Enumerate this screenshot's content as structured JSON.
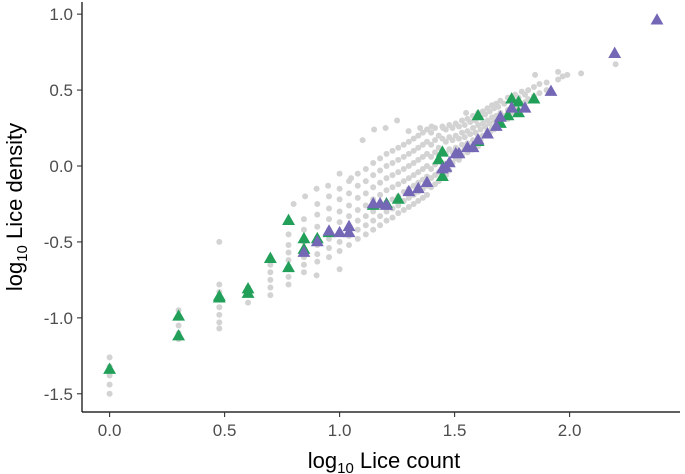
{
  "chart_data": {
    "type": "scatter",
    "xlabel": {
      "prefix": "log",
      "sub": "10",
      "suffix": " Lice count"
    },
    "ylabel": {
      "prefix": "log",
      "sub": "10",
      "suffix": " Lice density"
    },
    "xlim": [
      -0.12,
      2.48
    ],
    "ylim": [
      -1.62,
      1.08
    ],
    "x_ticks": [
      0.0,
      0.5,
      1.0,
      1.5,
      2.0
    ],
    "x_tick_labels": [
      "0.0",
      "0.5",
      "1.0",
      "1.5",
      "2.0"
    ],
    "y_ticks": [
      -1.5,
      -1.0,
      -0.5,
      0.0,
      0.5,
      1.0
    ],
    "y_tick_labels": [
      "-1.5",
      "-1.0",
      "-0.5",
      "0.0",
      "0.5",
      "1.0"
    ],
    "grid": false,
    "colors": {
      "background": "#d3d3d3",
      "green": "#22a05a",
      "purple": "#7467b5",
      "axis": "#000000"
    },
    "background_points": [
      [
        0.0,
        -1.26
      ],
      [
        0.0,
        -1.32
      ],
      [
        0.0,
        -1.38
      ],
      [
        0.0,
        -1.44
      ],
      [
        0.0,
        -1.5
      ],
      [
        0.3,
        -0.95
      ],
      [
        0.3,
        -1.0
      ],
      [
        0.3,
        -1.05
      ],
      [
        0.3,
        -1.1
      ],
      [
        0.3,
        -1.14
      ],
      [
        0.477,
        -0.5
      ],
      [
        0.477,
        -0.78
      ],
      [
        0.477,
        -0.83
      ],
      [
        0.477,
        -0.88
      ],
      [
        0.477,
        -0.93
      ],
      [
        0.477,
        -0.98
      ],
      [
        0.477,
        -1.03
      ],
      [
        0.477,
        -1.07
      ],
      [
        0.602,
        -0.8
      ],
      [
        0.602,
        -0.85
      ],
      [
        0.602,
        -0.9
      ],
      [
        0.699,
        -0.6
      ],
      [
        0.699,
        -0.65
      ],
      [
        0.699,
        -0.7
      ],
      [
        0.699,
        -0.75
      ],
      [
        0.699,
        -0.8
      ],
      [
        0.699,
        -0.85
      ],
      [
        0.778,
        -0.45
      ],
      [
        0.778,
        -0.52
      ],
      [
        0.778,
        -0.57
      ],
      [
        0.778,
        -0.62
      ],
      [
        0.778,
        -0.68
      ],
      [
        0.778,
        -0.73
      ],
      [
        0.778,
        -0.78
      ],
      [
        0.845,
        -0.35
      ],
      [
        0.845,
        -0.42
      ],
      [
        0.845,
        -0.5
      ],
      [
        0.845,
        -0.55
      ],
      [
        0.845,
        -0.6
      ],
      [
        0.845,
        -0.65
      ],
      [
        0.845,
        -0.7
      ],
      [
        0.903,
        -0.25
      ],
      [
        0.903,
        -0.32
      ],
      [
        0.903,
        -0.4
      ],
      [
        0.903,
        -0.47
      ],
      [
        0.903,
        -0.52
      ],
      [
        0.903,
        -0.58
      ],
      [
        0.903,
        -0.63
      ],
      [
        0.954,
        -0.2
      ],
      [
        0.954,
        -0.28
      ],
      [
        0.954,
        -0.35
      ],
      [
        0.954,
        -0.42
      ],
      [
        0.954,
        -0.48
      ],
      [
        0.954,
        -0.54
      ],
      [
        0.954,
        -0.6
      ],
      [
        1.0,
        -0.15
      ],
      [
        1.0,
        -0.22
      ],
      [
        1.0,
        -0.3
      ],
      [
        1.0,
        -0.37
      ],
      [
        1.0,
        -0.44
      ],
      [
        1.0,
        -0.5
      ],
      [
        1.0,
        -0.56
      ],
      [
        1.041,
        -0.1
      ],
      [
        1.041,
        -0.18
      ],
      [
        1.041,
        -0.26
      ],
      [
        1.041,
        -0.33
      ],
      [
        1.041,
        -0.4
      ],
      [
        1.041,
        -0.46
      ],
      [
        1.041,
        -0.52
      ],
      [
        1.079,
        -0.05
      ],
      [
        1.079,
        -0.13
      ],
      [
        1.079,
        -0.21
      ],
      [
        1.079,
        -0.29
      ],
      [
        1.079,
        -0.36
      ],
      [
        1.079,
        -0.42
      ],
      [
        1.079,
        -0.48
      ],
      [
        1.114,
        -0.02
      ],
      [
        1.114,
        -0.1
      ],
      [
        1.114,
        -0.18
      ],
      [
        1.114,
        -0.26
      ],
      [
        1.114,
        -0.33
      ],
      [
        1.114,
        -0.39
      ],
      [
        1.114,
        -0.45
      ],
      [
        1.146,
        0.02
      ],
      [
        1.146,
        -0.06
      ],
      [
        1.146,
        -0.14
      ],
      [
        1.146,
        -0.22
      ],
      [
        1.146,
        -0.3
      ],
      [
        1.146,
        -0.36
      ],
      [
        1.146,
        -0.42
      ],
      [
        1.176,
        0.05
      ],
      [
        1.176,
        -0.03
      ],
      [
        1.176,
        -0.11
      ],
      [
        1.176,
        -0.19
      ],
      [
        1.176,
        -0.27
      ],
      [
        1.176,
        -0.33
      ],
      [
        1.176,
        -0.39
      ],
      [
        1.204,
        0.08
      ],
      [
        1.204,
        0.0
      ],
      [
        1.204,
        -0.08
      ],
      [
        1.204,
        -0.16
      ],
      [
        1.204,
        -0.24
      ],
      [
        1.204,
        -0.3
      ],
      [
        1.204,
        -0.36
      ],
      [
        1.23,
        0.1
      ],
      [
        1.23,
        0.02
      ],
      [
        1.23,
        -0.06
      ],
      [
        1.23,
        -0.14
      ],
      [
        1.23,
        -0.22
      ],
      [
        1.23,
        -0.28
      ],
      [
        1.23,
        -0.34
      ],
      [
        1.255,
        0.12
      ],
      [
        1.255,
        0.04
      ],
      [
        1.255,
        -0.04
      ],
      [
        1.255,
        -0.12
      ],
      [
        1.255,
        -0.2
      ],
      [
        1.255,
        -0.26
      ],
      [
        1.255,
        -0.31
      ],
      [
        1.279,
        0.14
      ],
      [
        1.279,
        0.06
      ],
      [
        1.279,
        -0.02
      ],
      [
        1.279,
        -0.1
      ],
      [
        1.279,
        -0.17
      ],
      [
        1.279,
        -0.23
      ],
      [
        1.279,
        -0.29
      ],
      [
        1.301,
        0.16
      ],
      [
        1.301,
        0.08
      ],
      [
        1.301,
        0.0
      ],
      [
        1.301,
        -0.08
      ],
      [
        1.301,
        -0.15
      ],
      [
        1.301,
        -0.21
      ],
      [
        1.301,
        -0.27
      ],
      [
        1.322,
        0.18
      ],
      [
        1.322,
        0.1
      ],
      [
        1.322,
        0.02
      ],
      [
        1.322,
        -0.06
      ],
      [
        1.322,
        -0.13
      ],
      [
        1.322,
        -0.19
      ],
      [
        1.322,
        -0.25
      ],
      [
        1.342,
        0.2
      ],
      [
        1.342,
        0.12
      ],
      [
        1.342,
        0.04
      ],
      [
        1.342,
        -0.04
      ],
      [
        1.342,
        -0.11
      ],
      [
        1.342,
        -0.17
      ],
      [
        1.342,
        -0.23
      ],
      [
        1.362,
        0.22
      ],
      [
        1.362,
        0.14
      ],
      [
        1.362,
        0.06
      ],
      [
        1.362,
        -0.02
      ],
      [
        1.362,
        -0.09
      ],
      [
        1.362,
        -0.15
      ],
      [
        1.362,
        -0.21
      ],
      [
        1.38,
        0.24
      ],
      [
        1.38,
        0.16
      ],
      [
        1.38,
        0.08
      ],
      [
        1.38,
        0.0
      ],
      [
        1.38,
        -0.07
      ],
      [
        1.38,
        -0.13
      ],
      [
        1.38,
        -0.19
      ],
      [
        1.398,
        0.22
      ],
      [
        1.398,
        0.14
      ],
      [
        1.398,
        0.06
      ],
      [
        1.398,
        -0.02
      ],
      [
        1.398,
        -0.08
      ],
      [
        1.398,
        -0.14
      ],
      [
        1.415,
        0.25
      ],
      [
        1.415,
        0.17
      ],
      [
        1.415,
        0.09
      ],
      [
        1.415,
        0.01
      ],
      [
        1.415,
        -0.06
      ],
      [
        1.415,
        -0.12
      ],
      [
        1.431,
        0.2
      ],
      [
        1.431,
        0.12
      ],
      [
        1.431,
        0.04
      ],
      [
        1.431,
        -0.04
      ],
      [
        1.431,
        -0.1
      ],
      [
        1.447,
        0.26
      ],
      [
        1.447,
        0.18
      ],
      [
        1.447,
        0.1
      ],
      [
        1.447,
        0.02
      ],
      [
        1.447,
        -0.05
      ],
      [
        1.462,
        0.24
      ],
      [
        1.462,
        0.16
      ],
      [
        1.462,
        0.08
      ],
      [
        1.462,
        0.0
      ],
      [
        1.462,
        -0.06
      ],
      [
        1.477,
        0.27
      ],
      [
        1.477,
        0.19
      ],
      [
        1.477,
        0.11
      ],
      [
        1.477,
        0.03
      ],
      [
        1.477,
        -0.03
      ],
      [
        1.491,
        0.25
      ],
      [
        1.491,
        0.17
      ],
      [
        1.491,
        0.09
      ],
      [
        1.491,
        0.02
      ],
      [
        1.505,
        0.28
      ],
      [
        1.505,
        0.2
      ],
      [
        1.505,
        0.12
      ],
      [
        1.505,
        0.05
      ],
      [
        1.519,
        0.26
      ],
      [
        1.519,
        0.18
      ],
      [
        1.519,
        0.1
      ],
      [
        1.519,
        0.04
      ],
      [
        1.532,
        0.3
      ],
      [
        1.532,
        0.22
      ],
      [
        1.532,
        0.14
      ],
      [
        1.532,
        0.07
      ],
      [
        1.544,
        0.27
      ],
      [
        1.544,
        0.19
      ],
      [
        1.544,
        0.11
      ],
      [
        1.556,
        0.31
      ],
      [
        1.556,
        0.23
      ],
      [
        1.556,
        0.15
      ],
      [
        1.556,
        0.09
      ],
      [
        1.568,
        0.29
      ],
      [
        1.568,
        0.21
      ],
      [
        1.568,
        0.13
      ],
      [
        1.58,
        0.33
      ],
      [
        1.58,
        0.25
      ],
      [
        1.58,
        0.17
      ],
      [
        1.58,
        0.11
      ],
      [
        1.591,
        0.3
      ],
      [
        1.591,
        0.22
      ],
      [
        1.591,
        0.15
      ],
      [
        1.602,
        0.35
      ],
      [
        1.602,
        0.27
      ],
      [
        1.602,
        0.19
      ],
      [
        1.602,
        0.13
      ],
      [
        1.613,
        0.32
      ],
      [
        1.613,
        0.24
      ],
      [
        1.613,
        0.17
      ],
      [
        1.623,
        0.36
      ],
      [
        1.623,
        0.28
      ],
      [
        1.623,
        0.2
      ],
      [
        1.633,
        0.34
      ],
      [
        1.633,
        0.26
      ],
      [
        1.633,
        0.2
      ],
      [
        1.643,
        0.38
      ],
      [
        1.643,
        0.3
      ],
      [
        1.643,
        0.23
      ],
      [
        1.653,
        0.36
      ],
      [
        1.653,
        0.28
      ],
      [
        1.653,
        0.22
      ],
      [
        1.663,
        0.4
      ],
      [
        1.663,
        0.32
      ],
      [
        1.663,
        0.25
      ],
      [
        1.672,
        0.38
      ],
      [
        1.672,
        0.3
      ],
      [
        1.672,
        0.24
      ],
      [
        1.681,
        0.41
      ],
      [
        1.681,
        0.33
      ],
      [
        1.681,
        0.27
      ],
      [
        1.69,
        0.39
      ],
      [
        1.69,
        0.31
      ],
      [
        1.699,
        0.43
      ],
      [
        1.699,
        0.35
      ],
      [
        1.699,
        0.29
      ],
      [
        1.716,
        0.41
      ],
      [
        1.716,
        0.33
      ],
      [
        1.732,
        0.45
      ],
      [
        1.732,
        0.37
      ],
      [
        1.732,
        0.31
      ],
      [
        1.748,
        0.43
      ],
      [
        1.748,
        0.35
      ],
      [
        1.763,
        0.47
      ],
      [
        1.763,
        0.39
      ],
      [
        1.778,
        0.45
      ],
      [
        1.778,
        0.37
      ],
      [
        1.792,
        0.49
      ],
      [
        1.792,
        0.41
      ],
      [
        1.806,
        0.47
      ],
      [
        1.806,
        0.42
      ],
      [
        1.82,
        0.5
      ],
      [
        1.82,
        0.44
      ],
      [
        1.845,
        0.52
      ],
      [
        1.845,
        0.46
      ],
      [
        1.869,
        0.54
      ],
      [
        1.869,
        0.48
      ],
      [
        1.9,
        0.55
      ],
      [
        1.9,
        0.5
      ],
      [
        1.95,
        0.57
      ],
      [
        1.97,
        0.59
      ],
      [
        1.99,
        0.6
      ],
      [
        2.05,
        0.61
      ],
      [
        2.2,
        0.67
      ],
      [
        1.85,
        0.6
      ],
      [
        1.95,
        0.62
      ],
      [
        1.1,
        0.17
      ],
      [
        1.15,
        0.24
      ],
      [
        1.2,
        0.25
      ],
      [
        1.25,
        0.3
      ],
      [
        1.3,
        0.23
      ],
      [
        1.35,
        0.25
      ],
      [
        1.4,
        0.26
      ],
      [
        1.45,
        0.25
      ],
      [
        1.55,
        0.35
      ],
      [
        0.85,
        -0.2
      ],
      [
        0.95,
        -0.13
      ],
      [
        1.05,
        -0.08
      ],
      [
        0.8,
        -0.25
      ],
      [
        0.9,
        -0.15
      ],
      [
        1.0,
        -0.05
      ],
      [
        0.9,
        -0.72
      ],
      [
        1.0,
        -0.68
      ]
    ],
    "series": [
      {
        "color": "#22a05a",
        "marker": "triangle",
        "points": [
          [
            0.0,
            -1.34
          ],
          [
            0.3,
            -0.99
          ],
          [
            0.3,
            -1.12
          ],
          [
            0.477,
            -0.86
          ],
          [
            0.477,
            -0.87
          ],
          [
            0.602,
            -0.81
          ],
          [
            0.602,
            -0.84
          ],
          [
            0.699,
            -0.61
          ],
          [
            0.778,
            -0.36
          ],
          [
            0.778,
            -0.67
          ],
          [
            0.845,
            -0.48
          ],
          [
            0.845,
            -0.55
          ],
          [
            0.903,
            -0.48
          ],
          [
            0.954,
            -0.44
          ],
          [
            1.146,
            -0.26
          ],
          [
            1.204,
            -0.25
          ],
          [
            1.255,
            -0.22
          ],
          [
            1.431,
            0.04
          ],
          [
            1.447,
            0.09
          ],
          [
            1.447,
            -0.07
          ],
          [
            1.602,
            0.33
          ],
          [
            1.602,
            0.16
          ],
          [
            1.699,
            0.28
          ],
          [
            1.732,
            0.33
          ],
          [
            1.748,
            0.44
          ],
          [
            1.778,
            0.42
          ],
          [
            1.778,
            0.35
          ],
          [
            1.845,
            0.44
          ]
        ]
      },
      {
        "color": "#7467b5",
        "marker": "triangle",
        "points": [
          [
            0.845,
            -0.57
          ],
          [
            0.903,
            -0.5
          ],
          [
            0.954,
            -0.43
          ],
          [
            1.0,
            -0.44
          ],
          [
            1.041,
            -0.44
          ],
          [
            1.041,
            -0.4
          ],
          [
            1.146,
            -0.25
          ],
          [
            1.176,
            -0.25
          ],
          [
            1.204,
            -0.26
          ],
          [
            1.301,
            -0.17
          ],
          [
            1.342,
            -0.15
          ],
          [
            1.38,
            -0.11
          ],
          [
            1.447,
            -0.02
          ],
          [
            1.462,
            -0.01
          ],
          [
            1.477,
            0.02
          ],
          [
            1.505,
            0.08
          ],
          [
            1.519,
            0.08
          ],
          [
            1.556,
            0.12
          ],
          [
            1.58,
            0.12
          ],
          [
            1.602,
            0.17
          ],
          [
            1.643,
            0.21
          ],
          [
            1.681,
            0.26
          ],
          [
            1.699,
            0.32
          ],
          [
            1.748,
            0.38
          ],
          [
            1.806,
            0.38
          ],
          [
            1.919,
            0.49
          ],
          [
            2.196,
            0.74
          ],
          [
            2.38,
            0.96
          ]
        ]
      }
    ]
  }
}
